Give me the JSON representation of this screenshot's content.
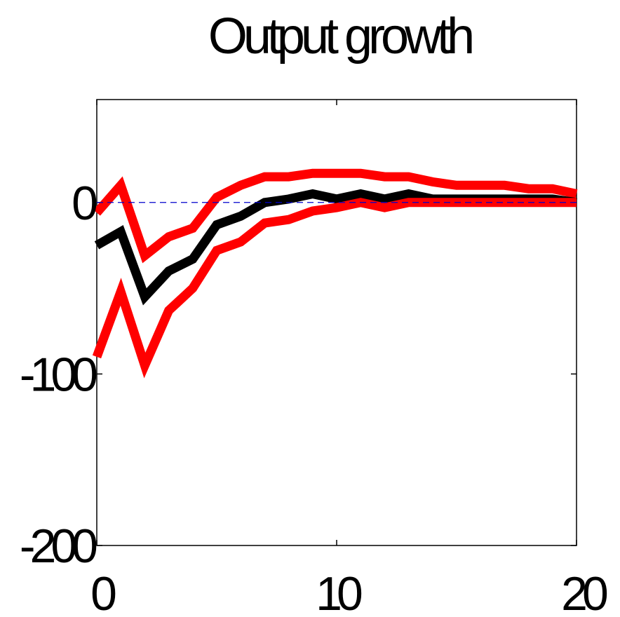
{
  "chart_data": {
    "type": "line",
    "title": "Output growth",
    "xlabel": "",
    "ylabel": "",
    "xlim": [
      0,
      20
    ],
    "ylim": [
      -200,
      60
    ],
    "x_ticks": [
      0,
      10,
      20
    ],
    "y_ticks": [
      0,
      -100,
      -200
    ],
    "x_tick_labels": [
      "0",
      "10",
      "20"
    ],
    "y_tick_labels": [
      "0",
      "-100",
      "-200"
    ],
    "grid": false,
    "x": [
      0,
      1,
      2,
      3,
      4,
      5,
      6,
      7,
      8,
      9,
      10,
      11,
      12,
      13,
      14,
      15,
      16,
      17,
      18,
      19,
      20
    ],
    "series": [
      {
        "color": "#ff0000",
        "style": "solid",
        "values": [
          -6,
          10,
          -31,
          -20,
          -15,
          3,
          10,
          15,
          15,
          17,
          17,
          17,
          15,
          15,
          12,
          10,
          10,
          10,
          8,
          8,
          5
        ]
      },
      {
        "color": "#000000",
        "style": "solid",
        "values": [
          -25,
          -17,
          -55,
          -40,
          -33,
          -13,
          -8,
          0,
          2,
          5,
          2,
          5,
          2,
          5,
          2,
          2,
          2,
          2,
          2,
          2,
          0
        ]
      },
      {
        "color": "#ff0000",
        "style": "solid",
        "values": [
          -90,
          -52,
          -95,
          -63,
          -50,
          -28,
          -23,
          -12,
          -10,
          -5,
          -3,
          0,
          -3,
          0,
          0,
          0,
          0,
          0,
          0,
          0,
          0
        ]
      }
    ],
    "reference_line": {
      "y": 0,
      "color": "#0000cc",
      "style": "dashed"
    }
  }
}
